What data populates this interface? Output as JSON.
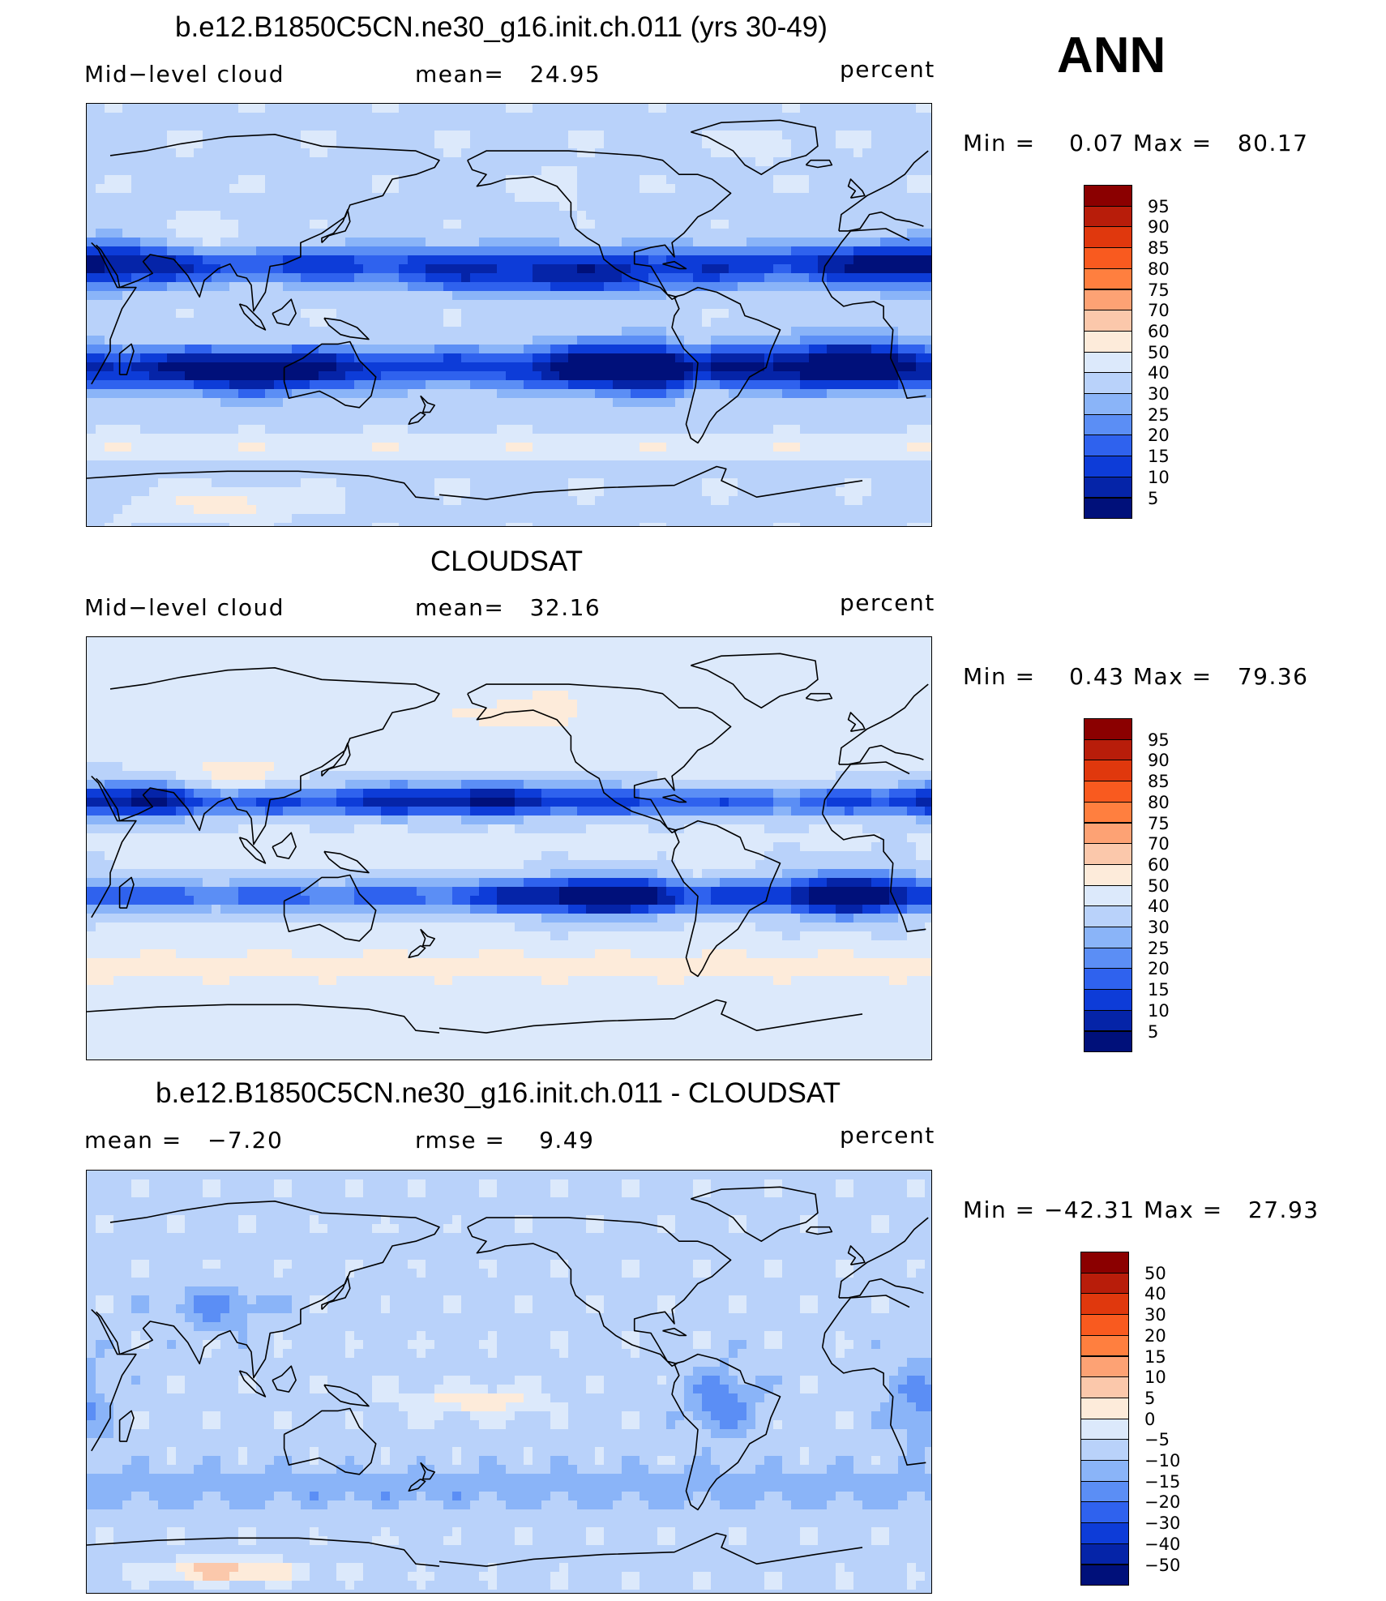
{
  "season": "ANN",
  "panels": [
    {
      "title": "b.e12.B1850C5CN.ne30_g16.init.ch.011 (yrs 30-49)",
      "left_label": "Mid−level cloud",
      "mid_label": "mean=   24.95",
      "units": "percent",
      "minmax": "Min =    0.07 Max =   80.17",
      "colorbar": {
        "labels": [
          "95",
          "90",
          "85",
          "80",
          "75",
          "70",
          "60",
          "50",
          "40",
          "30",
          "25",
          "20",
          "15",
          "10",
          "5"
        ],
        "colors": [
          "#8b0000",
          "#b81d0a",
          "#e0380d",
          "#f95a1f",
          "#ff7f3f",
          "#fda274",
          "#fbc8ab",
          "#fdebda",
          "#dce9fb",
          "#b9d2fa",
          "#8ab4f8",
          "#5b8ef5",
          "#2f62ee",
          "#0d3cd8",
          "#0524a8",
          "#00107a"
        ]
      },
      "field": "model"
    },
    {
      "title": "CLOUDSAT",
      "left_label": "Mid−level cloud",
      "mid_label": "mean=   32.16",
      "units": "percent",
      "minmax": "Min =    0.43 Max =   79.36",
      "colorbar": {
        "labels": [
          "95",
          "90",
          "85",
          "80",
          "75",
          "70",
          "60",
          "50",
          "40",
          "30",
          "25",
          "20",
          "15",
          "10",
          "5"
        ],
        "colors": [
          "#8b0000",
          "#b81d0a",
          "#e0380d",
          "#f95a1f",
          "#ff7f3f",
          "#fda274",
          "#fbc8ab",
          "#fdebda",
          "#dce9fb",
          "#b9d2fa",
          "#8ab4f8",
          "#5b8ef5",
          "#2f62ee",
          "#0d3cd8",
          "#0524a8",
          "#00107a"
        ]
      },
      "field": "obs"
    },
    {
      "title": "b.e12.B1850C5CN.ne30_g16.init.ch.011 - CLOUDSAT",
      "left_label": "mean =   −7.20",
      "mid_label": "rmse =    9.49",
      "units": "percent",
      "minmax": "Min = −42.31 Max =   27.93",
      "colorbar": {
        "labels": [
          "50",
          "40",
          "30",
          "20",
          "15",
          "10",
          "5",
          "0",
          "−5",
          "−10",
          "−15",
          "−20",
          "−30",
          "−40",
          "−50"
        ],
        "colors": [
          "#8b0000",
          "#b81d0a",
          "#e0380d",
          "#f95a1f",
          "#ff7f3f",
          "#fda274",
          "#fbc8ab",
          "#fdebda",
          "#dce9fb",
          "#b9d2fa",
          "#8ab4f8",
          "#5b8ef5",
          "#2f62ee",
          "#0d3cd8",
          "#0524a8",
          "#00107a"
        ]
      },
      "field": "diff"
    }
  ]
}
